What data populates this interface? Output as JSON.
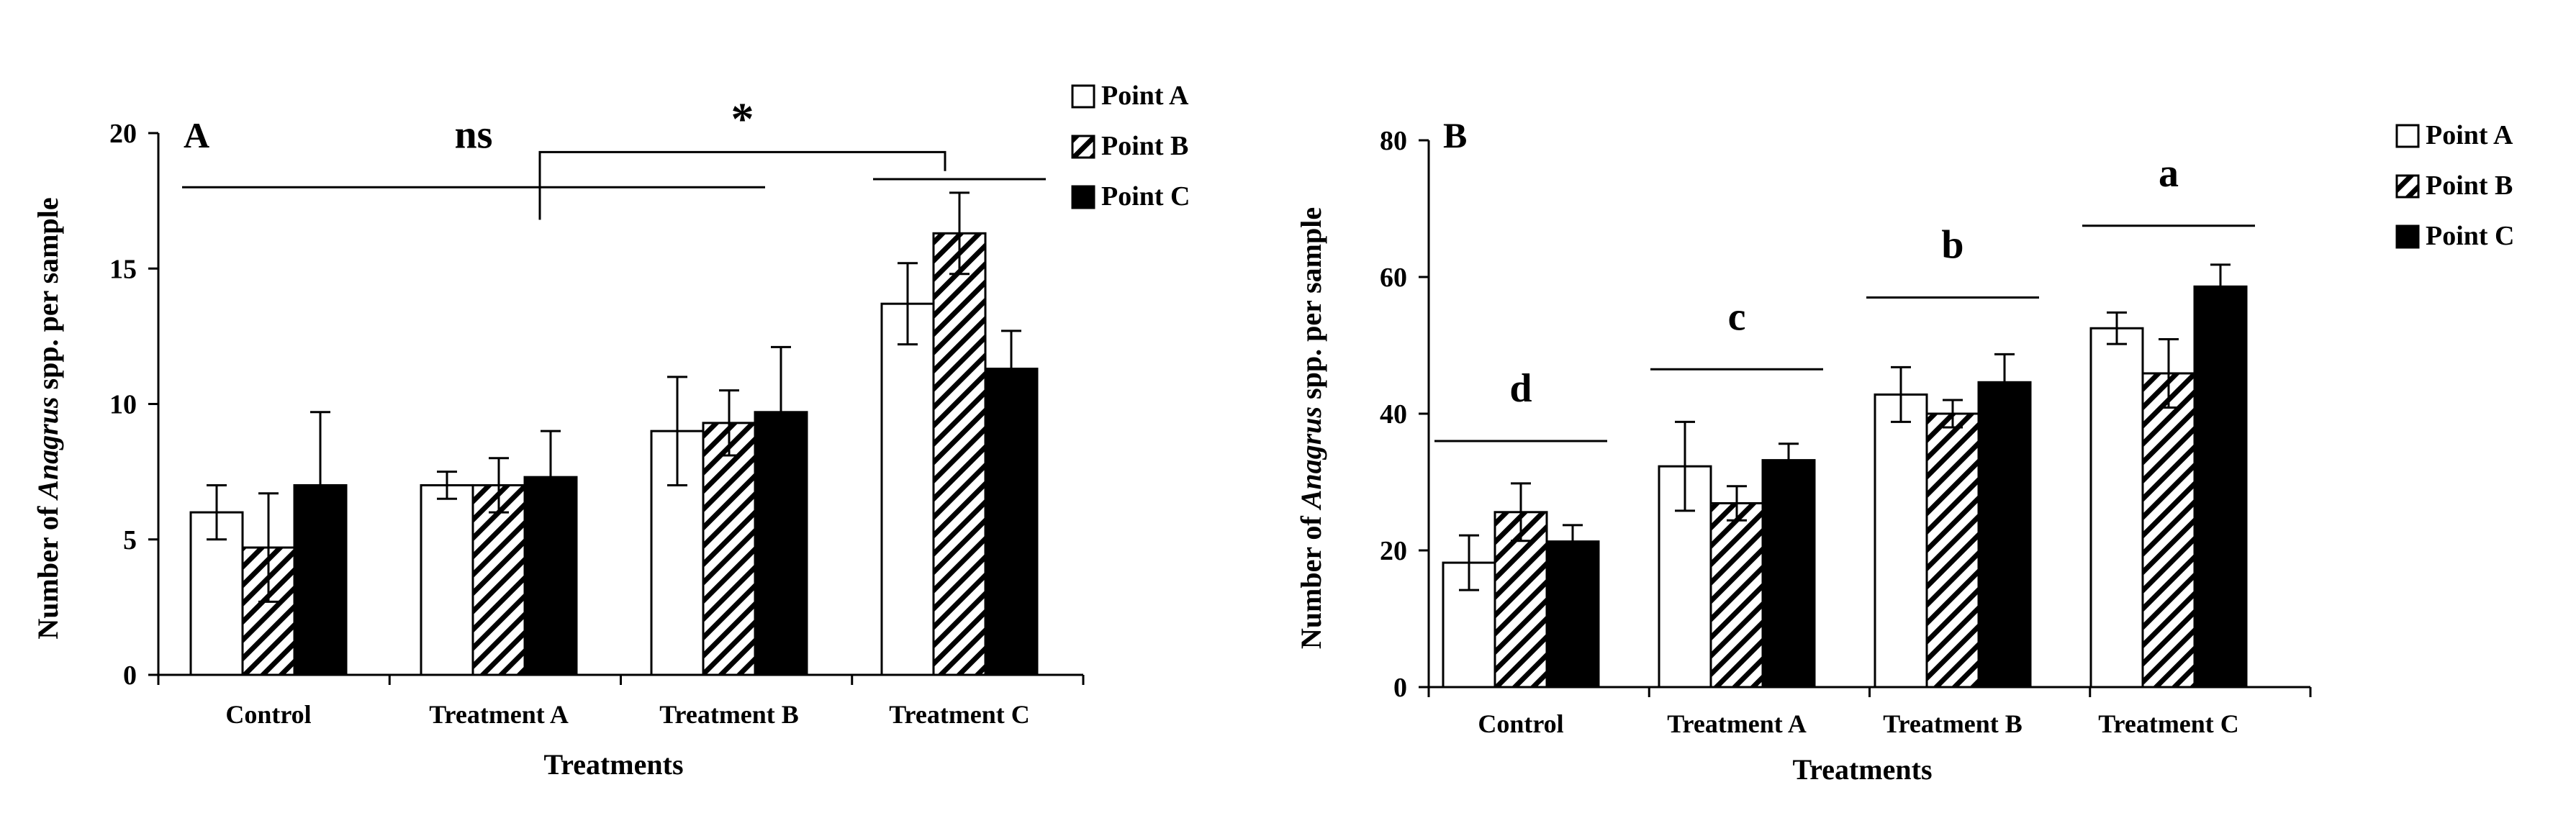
{
  "colors": {
    "black": "#000000",
    "white": "#ffffff"
  },
  "legend_labels": [
    "Point A",
    "Point B",
    "Point C"
  ],
  "chart_data": [
    {
      "type": "bar",
      "panel_label": "A",
      "title": "",
      "xlabel": "Treatments",
      "ylabel_parts": [
        "Number of ",
        "Anagrus",
        " spp. per sample"
      ],
      "ylim": [
        0,
        20
      ],
      "yticks": [
        0,
        5,
        10,
        15,
        20
      ],
      "categories": [
        "Control",
        "Treatment A",
        "Treatment B",
        "Treatment C"
      ],
      "series": [
        {
          "name": "Point A",
          "values": [
            6.0,
            7.0,
            9.0,
            13.7
          ],
          "errors": [
            1.0,
            0.5,
            2.0,
            1.5
          ]
        },
        {
          "name": "Point B",
          "values": [
            4.7,
            7.0,
            9.3,
            16.3
          ],
          "errors": [
            2.0,
            1.0,
            1.2,
            1.5
          ]
        },
        {
          "name": "Point C",
          "values": [
            7.0,
            7.3,
            9.7,
            11.3
          ],
          "errors": [
            2.7,
            1.7,
            2.4,
            1.4
          ]
        }
      ],
      "annotations": [
        {
          "text": "ns",
          "kind": "line",
          "from_category": 0,
          "to_category": 2,
          "y": 18.0
        },
        {
          "text": "",
          "kind": "line",
          "from_category": 3,
          "to_category": 3,
          "y": 18.3
        },
        {
          "text": "*",
          "kind": "bracket",
          "from_category": 1.5,
          "to_category": 3,
          "y": 19.3
        }
      ]
    },
    {
      "type": "bar",
      "panel_label": "B",
      "title": "",
      "xlabel": "Treatments",
      "ylabel_parts": [
        "Number of ",
        "Anagrus",
        " spp. per sample"
      ],
      "ylim": [
        0,
        80
      ],
      "yticks": [
        0,
        20,
        40,
        60,
        80
      ],
      "categories": [
        "Control",
        "Treatment A",
        "Treatment B",
        "Treatment C"
      ],
      "series": [
        {
          "name": "Point A",
          "values": [
            18.2,
            32.3,
            42.8,
            52.5
          ],
          "errors": [
            4.0,
            6.5,
            4.0,
            2.3
          ]
        },
        {
          "name": "Point B",
          "values": [
            25.6,
            26.9,
            40.0,
            45.9
          ],
          "errors": [
            4.2,
            2.5,
            2.0,
            5.0
          ]
        },
        {
          "name": "Point C",
          "values": [
            21.3,
            33.2,
            44.6,
            58.6
          ],
          "errors": [
            2.4,
            2.4,
            4.1,
            3.2
          ]
        }
      ],
      "annotations": [
        {
          "text": "d",
          "kind": "line",
          "from_category": 0,
          "to_category": 0,
          "y": 36.0
        },
        {
          "text": "c",
          "kind": "line",
          "from_category": 1,
          "to_category": 1,
          "y": 46.5
        },
        {
          "text": "b",
          "kind": "line",
          "from_category": 2,
          "to_category": 2,
          "y": 57.0
        },
        {
          "text": "a",
          "kind": "line",
          "from_category": 3,
          "to_category": 3,
          "y": 67.5
        }
      ]
    }
  ]
}
